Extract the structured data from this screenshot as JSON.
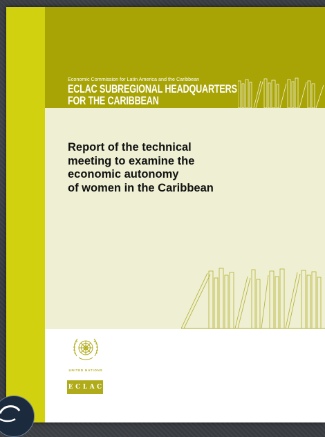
{
  "organization": {
    "subtitle": "Economic Commission for Latin America and the Caribbean",
    "name_line1": "ECLAC SUBREGIONAL HEADQUARTERS",
    "name_line2": "FOR THE CARIBBEAN"
  },
  "report": {
    "title_lines": [
      "Report of the technical",
      "meeting to examine the",
      "economic autonomy",
      "of women in the Caribbean"
    ]
  },
  "logos": {
    "un_label": "UNITED NATIONS",
    "eclac_letters": [
      "E",
      "C",
      "L",
      "A",
      "C"
    ]
  },
  "colors": {
    "spine": "#d2d10f",
    "top_band": "#a8a406",
    "middle_band": "#eff0d3",
    "book_lines": "#b8b540"
  }
}
